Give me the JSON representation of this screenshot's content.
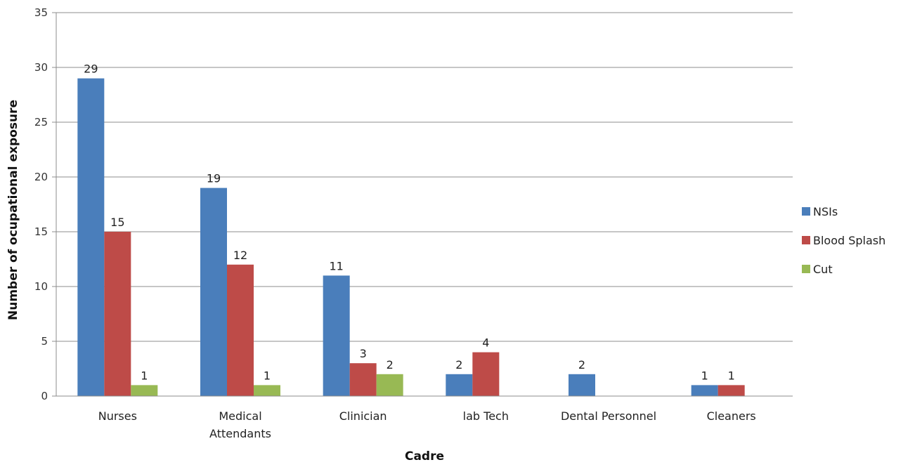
{
  "chart_data": {
    "type": "bar",
    "title": "",
    "xlabel": "Cadre",
    "ylabel": "Number  of ocupational exposure",
    "ylim": [
      0,
      35
    ],
    "yticks": [
      0,
      5,
      10,
      15,
      20,
      25,
      30,
      35
    ],
    "grid": true,
    "legend_position": "right",
    "categories": [
      [
        "Nurses"
      ],
      [
        "Medical",
        "Attendants"
      ],
      [
        "Clinician"
      ],
      [
        "lab Tech"
      ],
      [
        "Dental Personnel"
      ],
      [
        "Cleaners"
      ]
    ],
    "series": [
      {
        "name": "NSIs",
        "color": "#4a7ebb",
        "values": [
          29,
          19,
          11,
          2,
          2,
          1
        ]
      },
      {
        "name": "Blood Splash",
        "color": "#be4b48",
        "values": [
          15,
          12,
          3,
          4,
          null,
          1
        ]
      },
      {
        "name": "Cut",
        "color": "#98b954",
        "values": [
          1,
          1,
          2,
          null,
          null,
          null
        ]
      }
    ]
  }
}
